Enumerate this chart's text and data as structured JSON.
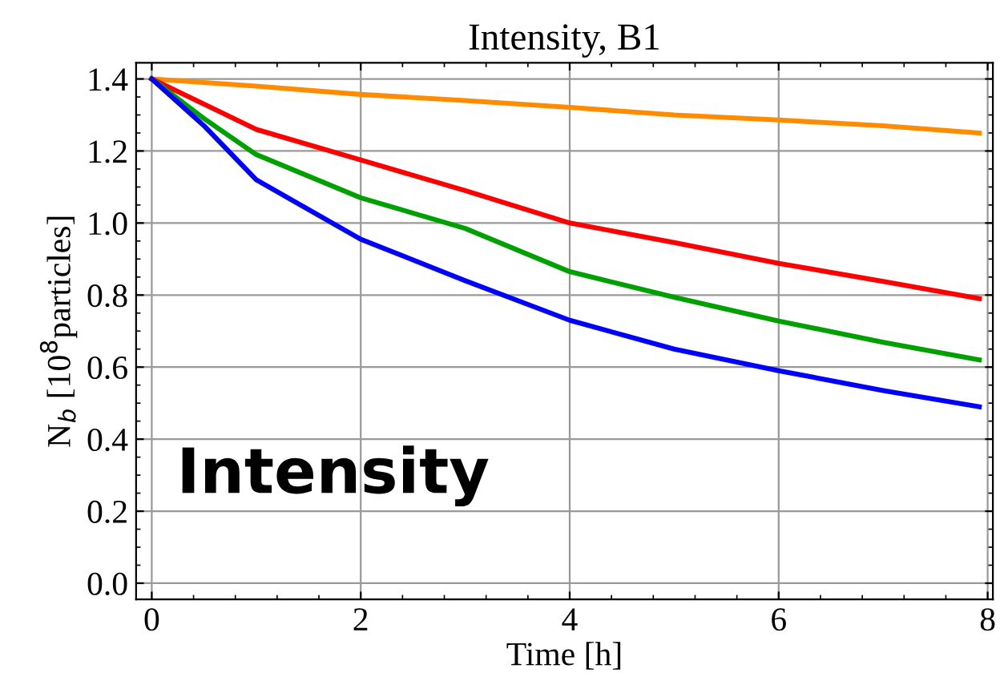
{
  "chart_data": {
    "type": "line",
    "title": "Intensity, B1",
    "xlabel": "Time [h]",
    "ylabel": "N$_{b}$ [10$^{8}$particles]",
    "x": [
      0,
      0.5,
      1,
      2,
      3,
      4,
      5,
      6,
      7,
      7.92
    ],
    "series": [
      {
        "color": "#ff8c00",
        "values": [
          1.4,
          1.39,
          1.38,
          1.357,
          1.34,
          1.321,
          1.3,
          1.286,
          1.27,
          1.25
        ]
      },
      {
        "color": "#ff0000",
        "values": [
          1.4,
          1.33,
          1.26,
          1.175,
          1.09,
          1.0,
          0.946,
          0.888,
          0.838,
          0.79
        ]
      },
      {
        "color": "#00a000",
        "values": [
          1.4,
          1.29,
          1.19,
          1.07,
          0.985,
          0.865,
          0.794,
          0.728,
          0.669,
          0.62
        ]
      },
      {
        "color": "#0000ff",
        "values": [
          1.4,
          1.27,
          1.12,
          0.955,
          0.84,
          0.73,
          0.65,
          0.59,
          0.535,
          0.49
        ]
      }
    ],
    "xlim": [
      -0.15,
      8.05
    ],
    "ylim": [
      -0.045,
      1.445
    ],
    "xticks": [
      0,
      2,
      4,
      6,
      8
    ],
    "yticks": [
      {
        "value": 0,
        "label": "0.0"
      },
      0.2,
      0.4,
      0.6,
      0.8,
      {
        "value": 1,
        "label": "1.0"
      },
      1.2,
      1.4
    ],
    "grid": true,
    "legend": false,
    "marker": "none",
    "line_style": "solid",
    "annotations": [
      "Intensity"
    ]
  }
}
